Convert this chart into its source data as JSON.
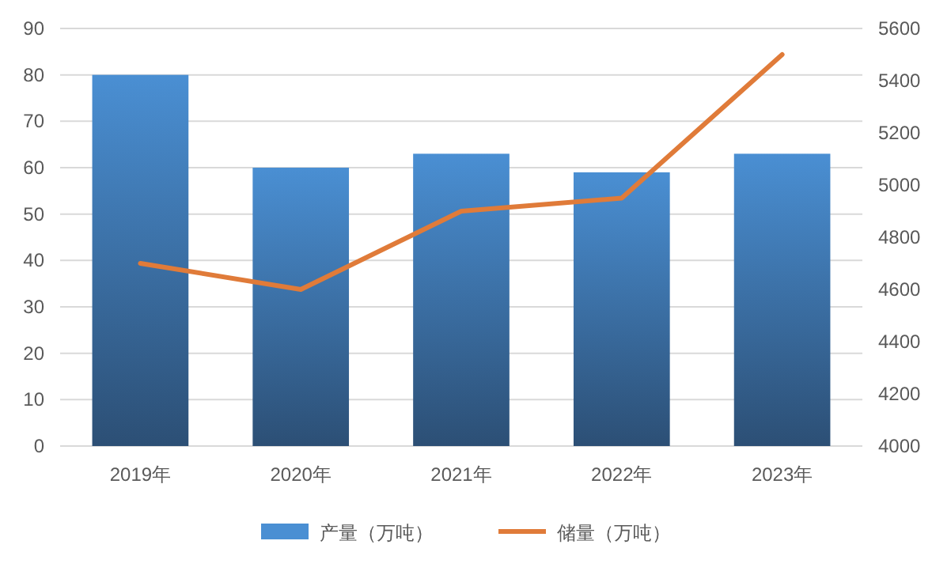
{
  "chart_data": {
    "type": "bar",
    "categories": [
      "2019年",
      "2020年",
      "2021年",
      "2022年",
      "2023年"
    ],
    "series": [
      {
        "name": "产量（万吨）",
        "color": "#4a8fd3",
        "values": [
          80,
          60,
          63,
          59,
          63
        ]
      },
      {
        "name": "储量（万吨）",
        "type": "line",
        "axis": "y2",
        "color": "#e07b39",
        "values": [
          4700,
          4600,
          4900,
          4950,
          5500
        ]
      }
    ],
    "ylim": [
      0,
      90
    ],
    "yticks": [
      0,
      10,
      20,
      30,
      40,
      50,
      60,
      70,
      80,
      90
    ],
    "y2lim": [
      4000,
      5600
    ],
    "y2ticks": [
      4000,
      4200,
      4400,
      4600,
      4800,
      5000,
      5200,
      5400,
      5600
    ],
    "grid": "y",
    "legend": "bottom",
    "line_style": "solid",
    "marker": "none"
  }
}
